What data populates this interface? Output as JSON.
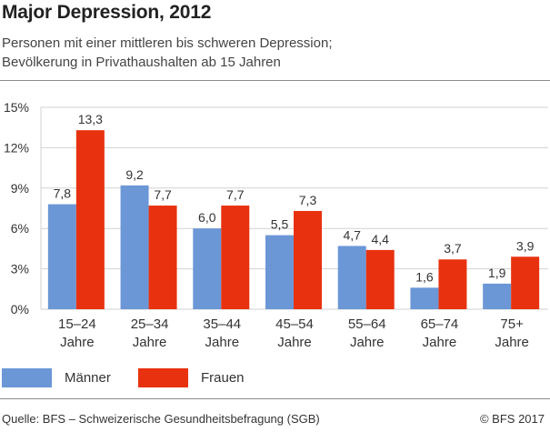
{
  "title": "Major Depression, 2012",
  "subtitle_lines": [
    "Personen mit einer mittleren bis schweren Depression;",
    "Bevölkerung in Privathaushalten ab 15 Jahren"
  ],
  "source": "Quelle: BFS – Schweizerische Gesundheitsbefragung (SGB)",
  "copyright": "© BFS 2017",
  "colors": {
    "maenner": "#6b97d6",
    "frauen": "#e8320f"
  },
  "chart_data": {
    "type": "bar",
    "categories": [
      [
        "15–24",
        "Jahre"
      ],
      [
        "25–34",
        "Jahre"
      ],
      [
        "35–44",
        "Jahre"
      ],
      [
        "45–54",
        "Jahre"
      ],
      [
        "55–64",
        "Jahre"
      ],
      [
        "65–74",
        "Jahre"
      ],
      [
        "75+",
        "Jahre"
      ]
    ],
    "series": [
      {
        "name": "Männer",
        "values": [
          7.8,
          9.2,
          6.0,
          5.5,
          4.7,
          1.6,
          1.9
        ],
        "labels": [
          "7,8",
          "9,2",
          "6,0",
          "5,5",
          "4,7",
          "1,6",
          "1,9"
        ]
      },
      {
        "name": "Frauen",
        "values": [
          13.3,
          7.7,
          7.7,
          7.3,
          4.4,
          3.7,
          3.9
        ],
        "labels": [
          "13,3",
          "7,7",
          "7,7",
          "7,3",
          "4,4",
          "3,7",
          "3,9"
        ]
      }
    ],
    "yticks": [
      "0%",
      "3%",
      "6%",
      "9%",
      "12%",
      "15%"
    ],
    "ylim": [
      0,
      15
    ],
    "grid": true,
    "legend_position": "bottom-left"
  }
}
